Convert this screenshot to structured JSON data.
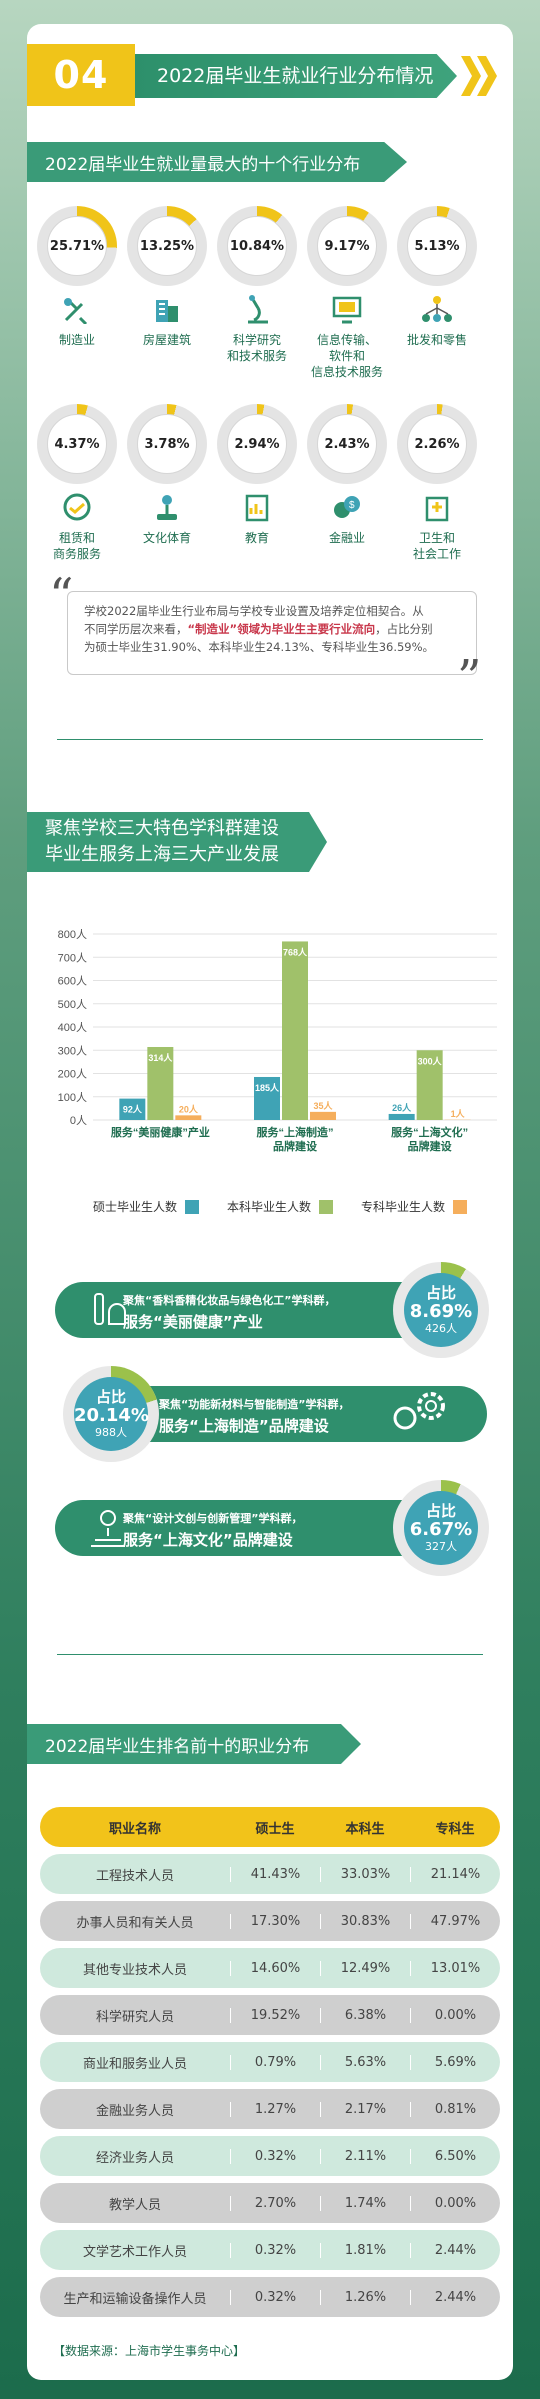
{
  "section": {
    "number": "04",
    "title": "2022届毕业生就业行业分布情况"
  },
  "industry_block": {
    "title": "2022届毕业生就业量最大的十个行业分布",
    "items": [
      {
        "pct": "25.71%",
        "value": 25.71,
        "label1": "制造业",
        "label2": "",
        "label3": "",
        "icon": "tools-icon"
      },
      {
        "pct": "13.25%",
        "value": 13.25,
        "label1": "房屋建筑",
        "label2": "",
        "label3": "",
        "icon": "building-icon"
      },
      {
        "pct": "10.84%",
        "value": 10.84,
        "label1": "科学研究",
        "label2": "和技术服务",
        "label3": "",
        "icon": "microscope-icon"
      },
      {
        "pct": "9.17%",
        "value": 9.17,
        "label1": "信息传输、",
        "label2": "软件和",
        "label3": "信息技术服务",
        "icon": "computer-icon"
      },
      {
        "pct": "5.13%",
        "value": 5.13,
        "label1": "批发和零售",
        "label2": "",
        "label3": "",
        "icon": "network-icon"
      },
      {
        "pct": "4.37%",
        "value": 4.37,
        "label1": "租赁和",
        "label2": "商务服务",
        "label3": "",
        "icon": "handshake-icon"
      },
      {
        "pct": "3.78%",
        "value": 3.78,
        "label1": "文化体育",
        "label2": "",
        "label3": "",
        "icon": "joystick-icon"
      },
      {
        "pct": "2.94%",
        "value": 2.94,
        "label1": "教育",
        "label2": "",
        "label3": "",
        "icon": "report-icon"
      },
      {
        "pct": "2.43%",
        "value": 2.43,
        "label1": "金融业",
        "label2": "",
        "label3": "",
        "icon": "coins-icon"
      },
      {
        "pct": "2.26%",
        "value": 2.26,
        "label1": "卫生和",
        "label2": "社会工作",
        "label3": "",
        "icon": "hospital-icon"
      }
    ]
  },
  "quote": {
    "line1": "学校2022届毕业生行业布局与学校专业设置及培养定位相契合。从",
    "line2a": "不同学历层次来看，",
    "line2_highlight": "“制造业”领域为毕业生主要行业流向",
    "line2b": "，占比分别",
    "line3": "为硕士毕业生31.90%、本科毕业生24.13%、专科毕业生36.59%。"
  },
  "industry3": {
    "title_line1": "聚焦学校三大特色学科群建设",
    "title_line2": "毕业生服务上海三大产业发展"
  },
  "chart_data": {
    "type": "bar",
    "categories": [
      "服务“美丽健康”产业",
      "服务“上海制造”品牌建设",
      "服务“上海文化”品牌建设"
    ],
    "category_lines": [
      [
        "服务“美丽健康”产业"
      ],
      [
        "服务“上海制造”",
        "品牌建设"
      ],
      [
        "服务“上海文化”",
        "品牌建设"
      ]
    ],
    "series": [
      {
        "name": "硕士毕业生人数",
        "color": "#3fa3b5",
        "values": [
          92,
          185,
          26
        ],
        "labels": [
          "92人",
          "185人",
          "26人"
        ]
      },
      {
        "name": "本科毕业生人数",
        "color": "#a0c16a",
        "values": [
          314,
          768,
          300
        ],
        "labels": [
          "314人",
          "768人",
          "300人"
        ]
      },
      {
        "name": "专科毕业生人数",
        "color": "#f5ae5c",
        "values": [
          20,
          35,
          1
        ],
        "labels": [
          "20人",
          "35人",
          "1人"
        ]
      }
    ],
    "yticks": [
      "800人",
      "700人",
      "600人",
      "500人",
      "400人",
      "300人",
      "200人",
      "100人",
      "0人"
    ],
    "ylim": [
      0,
      800
    ]
  },
  "pills": [
    {
      "line1": "聚焦“香料香精化妆品与绿色化工”学科群，",
      "line2": "服务“美丽健康”产业",
      "share_label": "占比",
      "share": "8.69%",
      "share_value": 8.69,
      "count": "426人",
      "icon": "cosmetics-icon"
    },
    {
      "line1": "聚焦“功能新材料与智能制造”学科群，",
      "line2": "服务“上海制造”品牌建设",
      "share_label": "占比",
      "share": "20.14%",
      "share_value": 20.14,
      "count": "988人",
      "icon": "gears-icon"
    },
    {
      "line1": "聚焦“设计文创与创新管理”学科群，",
      "line2": "服务“上海文化”品牌建设",
      "share_label": "占比",
      "share": "6.67%",
      "share_value": 6.67,
      "count": "327人",
      "icon": "lightbulb-icon"
    }
  ],
  "occupation": {
    "title": "2022届毕业生排名前十的职业分布",
    "headers": [
      "职业名称",
      "硕士生",
      "本科生",
      "专科生"
    ],
    "rows": [
      [
        "工程技术人员",
        "41.43%",
        "33.03%",
        "21.14%"
      ],
      [
        "办事人员和有关人员",
        "17.30%",
        "30.83%",
        "47.97%"
      ],
      [
        "其他专业技术人员",
        "14.60%",
        "12.49%",
        "13.01%"
      ],
      [
        "科学研究人员",
        "19.52%",
        "6.38%",
        "0.00%"
      ],
      [
        "商业和服务业人员",
        "0.79%",
        "5.63%",
        "5.69%"
      ],
      [
        "金融业务人员",
        "1.27%",
        "2.17%",
        "0.81%"
      ],
      [
        "经济业务人员",
        "0.32%",
        "2.11%",
        "6.50%"
      ],
      [
        "教学人员",
        "2.70%",
        "1.74%",
        "0.00%"
      ],
      [
        "文学艺术工作人员",
        "0.32%",
        "1.81%",
        "2.44%"
      ],
      [
        "生产和运输设备操作人员",
        "0.32%",
        "1.26%",
        "2.44%"
      ]
    ]
  },
  "source": "【数据来源：上海市学生事务中心】",
  "colors": {
    "green": "#2f8f6d",
    "yellow": "#f0c419",
    "teal": "#3fa3b5"
  }
}
